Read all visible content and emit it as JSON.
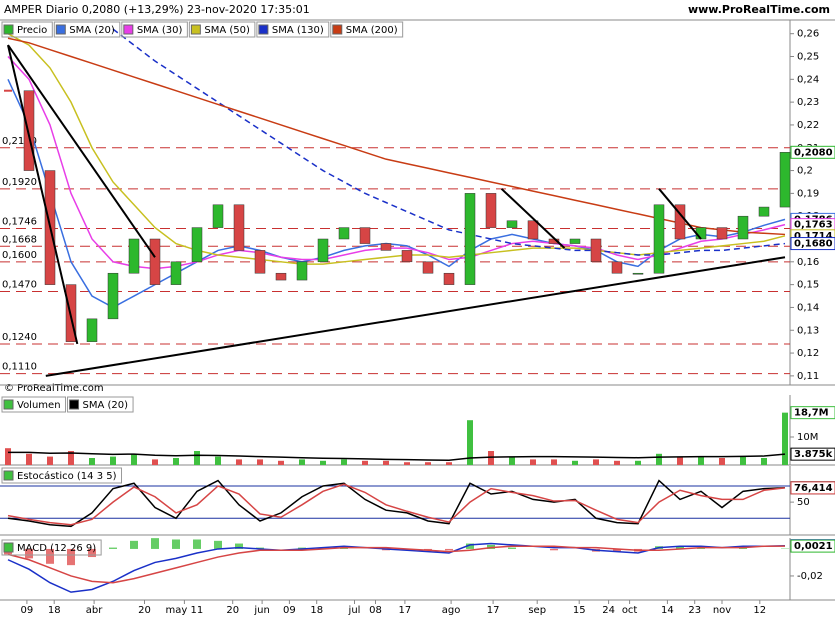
{
  "header": {
    "title": "AMPER Diario 0,2080 (+13,29%) 23-nov-2020 17:35:01",
    "source": "www.ProRealTime.com",
    "copyright": "© ProRealTime.com"
  },
  "x_axis": {
    "xticks": [
      {
        "value": 0.9,
        "label": "09"
      },
      {
        "value": 2.2,
        "label": "18"
      },
      {
        "value": 4.1,
        "label": "abr"
      },
      {
        "value": 6.5,
        "label": "20"
      },
      {
        "value": 8.4,
        "label": "may 11"
      },
      {
        "value": 10.7,
        "label": "20"
      },
      {
        "value": 12.1,
        "label": "jun"
      },
      {
        "value": 13.4,
        "label": "09"
      },
      {
        "value": 14.7,
        "label": "18"
      },
      {
        "value": 16.5,
        "label": "jul"
      },
      {
        "value": 17.5,
        "label": "08"
      },
      {
        "value": 18.9,
        "label": "17"
      },
      {
        "value": 21.1,
        "label": "ago"
      },
      {
        "value": 23.1,
        "label": "17"
      },
      {
        "value": 25.2,
        "label": "sep"
      },
      {
        "value": 27.2,
        "label": "15"
      },
      {
        "value": 28.6,
        "label": "24"
      },
      {
        "value": 29.6,
        "label": "oct"
      },
      {
        "value": 31.4,
        "label": "14"
      },
      {
        "value": 32.7,
        "label": "23"
      },
      {
        "value": 34,
        "label": "nov"
      },
      {
        "value": 35.8,
        "label": "12"
      }
    ]
  },
  "chart_data": [
    {
      "type": "candlestick",
      "name": "Precio",
      "up_color": "#2db82d",
      "down_color": "#d64545",
      "close": [
        0.235,
        0.2,
        0.15,
        0.125,
        0.135,
        0.155,
        0.17,
        0.15,
        0.16,
        0.175,
        0.185,
        0.165,
        0.155,
        0.152,
        0.16,
        0.17,
        0.175,
        0.168,
        0.165,
        0.16,
        0.155,
        0.15,
        0.19,
        0.175,
        0.178,
        0.17,
        0.168,
        0.17,
        0.16,
        0.155,
        0.155,
        0.185,
        0.17,
        0.175,
        0.17,
        0.18,
        0.184,
        0.208
      ],
      "series": [
        {
          "name": "SMA (20)",
          "color": "#3a6fe0",
          "values": [
            0.24,
            0.22,
            0.19,
            0.16,
            0.145,
            0.14,
            0.145,
            0.15,
            0.155,
            0.16,
            0.165,
            0.167,
            0.165,
            0.162,
            0.16,
            0.162,
            0.165,
            0.167,
            0.168,
            0.167,
            0.163,
            0.158,
            0.165,
            0.17,
            0.172,
            0.17,
            0.168,
            0.167,
            0.165,
            0.16,
            0.158,
            0.165,
            0.17,
            0.172,
            0.171,
            0.173,
            0.176,
            0.1786
          ]
        },
        {
          "name": "SMA (30)",
          "color": "#e83ee8",
          "values": [
            0.25,
            0.24,
            0.22,
            0.19,
            0.17,
            0.16,
            0.158,
            0.157,
            0.158,
            0.16,
            0.163,
            0.165,
            0.164,
            0.162,
            0.161,
            0.161,
            0.163,
            0.165,
            0.166,
            0.166,
            0.164,
            0.161,
            0.162,
            0.165,
            0.168,
            0.169,
            0.168,
            0.167,
            0.166,
            0.163,
            0.161,
            0.163,
            0.166,
            0.169,
            0.17,
            0.172,
            0.174,
            0.1763
          ]
        },
        {
          "name": "SMA (50)",
          "color": "#c8c020",
          "values": [
            0.26,
            0.255,
            0.245,
            0.23,
            0.21,
            0.195,
            0.185,
            0.175,
            0.168,
            0.165,
            0.163,
            0.162,
            0.161,
            0.16,
            0.159,
            0.159,
            0.16,
            0.161,
            0.162,
            0.163,
            0.163,
            0.162,
            0.163,
            0.164,
            0.165,
            0.166,
            0.166,
            0.166,
            0.165,
            0.164,
            0.163,
            0.164,
            0.165,
            0.166,
            0.167,
            0.168,
            0.169,
            0.1714
          ]
        },
        {
          "name": "SMA (130)",
          "color": "#1a30c8",
          "dashed": true,
          "values": [
            null,
            null,
            null,
            null,
            null,
            0.262,
            0.255,
            0.248,
            0.242,
            0.236,
            0.23,
            0.224,
            0.218,
            0.212,
            0.206,
            0.2,
            0.195,
            0.19,
            0.186,
            0.182,
            0.178,
            0.174,
            0.172,
            0.17,
            0.168,
            0.167,
            0.166,
            0.165,
            0.165,
            0.164,
            0.163,
            0.163,
            0.164,
            0.165,
            0.165,
            0.166,
            0.167,
            0.168
          ]
        },
        {
          "name": "SMA (200)",
          "color": "#c83c14",
          "values": [
            0.258,
            0.256,
            0.253,
            0.25,
            0.247,
            0.244,
            0.241,
            0.238,
            0.235,
            0.232,
            0.229,
            0.226,
            0.223,
            0.22,
            0.217,
            0.214,
            0.211,
            0.208,
            0.205,
            0.203,
            0.201,
            0.199,
            0.197,
            0.195,
            0.193,
            0.191,
            0.189,
            0.187,
            0.185,
            0.183,
            0.181,
            0.179,
            0.177,
            0.175,
            0.174,
            0.173,
            0.1725,
            0.172
          ]
        }
      ],
      "ylim": [
        0.106,
        0.266
      ],
      "yticks": [
        {
          "value": 0.11,
          "label": "0,11"
        },
        {
          "value": 0.12,
          "label": "0,12"
        },
        {
          "value": 0.13,
          "label": "0,13"
        },
        {
          "value": 0.14,
          "label": "0,14"
        },
        {
          "value": 0.15,
          "label": "0,15"
        },
        {
          "value": 0.16,
          "label": "0,16"
        },
        {
          "value": 0.17,
          "label": "0,17"
        },
        {
          "value": 0.18,
          "label": "0,18"
        },
        {
          "value": 0.19,
          "label": "0,19"
        },
        {
          "value": 0.2,
          "label": "0,2"
        },
        {
          "value": 0.21,
          "label": "0,21"
        },
        {
          "value": 0.22,
          "label": "0,22"
        },
        {
          "value": 0.23,
          "label": "0,23"
        },
        {
          "value": 0.24,
          "label": "0,24"
        },
        {
          "value": 0.25,
          "label": "0,25"
        },
        {
          "value": 0.26,
          "label": "0,26"
        }
      ],
      "levels": [
        {
          "value": 0.21,
          "label": "0,2100"
        },
        {
          "value": 0.192,
          "label": "0,1920"
        },
        {
          "value": 0.1746,
          "label": "0,1746"
        },
        {
          "value": 0.1668,
          "label": "0,1668"
        },
        {
          "value": 0.16,
          "label": "0,1600"
        },
        {
          "value": 0.147,
          "label": "0,1470"
        },
        {
          "value": 0.124,
          "label": "0,1240"
        },
        {
          "value": 0.111,
          "label": "0,1110"
        }
      ],
      "last_values": [
        {
          "value": 0.208,
          "label": "0,2080",
          "color": "#2db82d"
        },
        {
          "value": 0.1786,
          "label": "0,1786",
          "color": "#3a6fe0"
        },
        {
          "value": 0.1763,
          "label": "0,1763",
          "color": "#e83ee8"
        },
        {
          "value": 0.1714,
          "label": "0,1714",
          "color": "#c8c020"
        },
        {
          "value": 0.168,
          "label": "0,1680",
          "color": "#1a30c8"
        }
      ],
      "trendlines": [
        {
          "x": [
            0,
            3.3
          ],
          "y": [
            0.255,
            0.124
          ]
        },
        {
          "x": [
            0,
            7
          ],
          "y": [
            0.255,
            0.162
          ]
        },
        {
          "x": [
            1.8,
            37
          ],
          "y": [
            0.11,
            0.162
          ]
        },
        {
          "x": [
            23.5,
            26.5
          ],
          "y": [
            0.192,
            0.166
          ]
        },
        {
          "x": [
            31,
            33
          ],
          "y": [
            0.192,
            0.17
          ]
        }
      ]
    },
    {
      "type": "volume",
      "name": "Volumen",
      "color": "#e05050",
      "up_color": "#40c040",
      "values": [
        6000000,
        4000000,
        3000000,
        5000000,
        2500000,
        3000000,
        4000000,
        2000000,
        2500000,
        5000000,
        3000000,
        2000000,
        2000000,
        1500000,
        2000000,
        1500000,
        2000000,
        1500000,
        1500000,
        1000000,
        1000000,
        1000000,
        16000000,
        5000000,
        3000000,
        2000000,
        2000000,
        1500000,
        2000000,
        1500000,
        1500000,
        4000000,
        3000000,
        3000000,
        2500000,
        3000000,
        2500000,
        18700000
      ],
      "series": [
        {
          "name": "SMA (20)",
          "color": "#000000",
          "values": [
            4500000,
            4500000,
            4200000,
            4300000,
            4000000,
            3800000,
            3900000,
            3500000,
            3300000,
            3500000,
            3400000,
            3200000,
            3000000,
            2800000,
            2600000,
            2400000,
            2300000,
            2200000,
            2000000,
            1900000,
            1800000,
            1700000,
            2500000,
            2800000,
            2900000,
            3000000,
            3000000,
            2900000,
            2800000,
            2700000,
            2600000,
            2800000,
            2900000,
            3000000,
            3000000,
            3100000,
            3200000,
            3875000
          ]
        }
      ],
      "ylim": [
        0,
        25000000
      ],
      "yticks": [
        {
          "value": 10000000,
          "label": "10M"
        }
      ],
      "last_values": [
        {
          "value": 18700000,
          "label": "18,7M",
          "color": "#40c040"
        },
        {
          "value": 3875000,
          "label": "3.875k",
          "color": "#000000"
        }
      ]
    },
    {
      "type": "oscillator",
      "name": "Estocástico (14 3 5)",
      "series": [
        {
          "color": "#000000",
          "values": [
            20,
            15,
            8,
            5,
            30,
            75,
            85,
            40,
            20,
            70,
            90,
            45,
            15,
            30,
            60,
            80,
            85,
            55,
            35,
            30,
            15,
            10,
            85,
            65,
            70,
            55,
            50,
            55,
            20,
            12,
            10,
            90,
            55,
            70,
            40,
            70,
            75,
            76.594
          ]
        },
        {
          "color": "#d64545",
          "values": [
            25,
            18,
            12,
            8,
            18,
            50,
            78,
            60,
            30,
            45,
            80,
            65,
            28,
            22,
            45,
            70,
            83,
            68,
            45,
            33,
            22,
            13,
            50,
            75,
            68,
            62,
            52,
            53,
            35,
            18,
            12,
            50,
            72,
            62,
            55,
            55,
            72,
            76.414
          ]
        }
      ],
      "ylim": [
        -11,
        117
      ],
      "yticks": [
        50
      ],
      "levels": [
        20,
        80
      ],
      "level_color": "#1a30a0",
      "last_values": [
        {
          "value": 76.594,
          "label": "76,594",
          "color": "#000000"
        },
        {
          "value": 76.414,
          "label": "76,414",
          "color": "#d64545"
        }
      ]
    },
    {
      "type": "macd",
      "name": "MACD (12 26 9)",
      "series": [
        {
          "color": "#1a30c8",
          "values": [
            -0.008,
            -0.015,
            -0.025,
            -0.032,
            -0.03,
            -0.024,
            -0.016,
            -0.01,
            -0.007,
            -0.003,
            0,
            0.001,
            0,
            -0.001,
            0,
            0.001,
            0.002,
            0.001,
            0,
            -0.001,
            -0.002,
            -0.003,
            0.003,
            0.004,
            0.003,
            0.002,
            0.001,
            0.001,
            -0.001,
            -0.002,
            -0.003,
            0.001,
            0.002,
            0.002,
            0.001,
            0.002,
            0.002,
            0.0024
          ]
        },
        {
          "color": "#d64545",
          "values": [
            -0.004,
            -0.008,
            -0.014,
            -0.02,
            -0.024,
            -0.025,
            -0.022,
            -0.018,
            -0.014,
            -0.01,
            -0.006,
            -0.003,
            -0.001,
            -0.001,
            -0.001,
            0,
            0.001,
            0.001,
            0.001,
            0,
            -0.001,
            -0.002,
            -0.001,
            0.001,
            0.002,
            0.002,
            0.002,
            0.001,
            0.001,
            0,
            -0.001,
            -0.001,
            0,
            0.001,
            0.001,
            0.001,
            0.002,
            0.0021
          ]
        }
      ],
      "histogram": [
        -0.004,
        -0.007,
        -0.011,
        -0.012,
        -0.006,
        0.001,
        0.006,
        0.008,
        0.007,
        0.007,
        0.006,
        0.004,
        0.001,
        0,
        0.001,
        0.001,
        0.001,
        0,
        -0.001,
        -0.001,
        -0.001,
        -0.001,
        0.004,
        0.003,
        0.001,
        0,
        -0.001,
        0,
        -0.002,
        -0.002,
        -0.002,
        0.002,
        0.002,
        0.001,
        0,
        0.001,
        0,
        0.0003
      ],
      "up_color": "#40c040",
      "down_color": "#e05050",
      "ylim": [
        -0.0378,
        0.0081
      ],
      "yticks": [
        {
          "value": -0.02,
          "label": "-0,02"
        }
      ],
      "last_values": [
        {
          "value": 0.0024,
          "label": "0,0024",
          "color": "#1a30c8"
        },
        {
          "value": 0.0021,
          "label": "0,0021",
          "color": "#2db82d"
        }
      ]
    }
  ]
}
